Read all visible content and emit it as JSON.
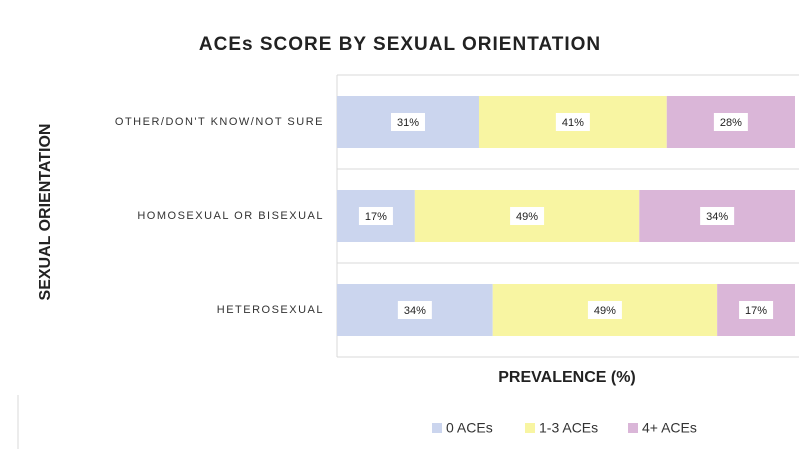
{
  "chart_data": {
    "type": "stacked-bar",
    "title": "ACEs SCORE BY SEXUAL ORIENTATION",
    "y_label": "SEXUAL ORIENTATION",
    "x_label": "PREVALENCE (%)",
    "categories": [
      "OTHER/DON'T KNOW/NOT SURE",
      "HOMOSEXUAL OR BISEXUAL",
      "HETEROSEXUAL"
    ],
    "series": [
      {
        "name": "0 ACEs",
        "color": "#cbd5ee",
        "values": [
          31,
          17,
          34
        ],
        "value_labels": [
          "31%",
          "17%",
          "34%"
        ]
      },
      {
        "name": "1-3 ACEs",
        "color": "#f8f5a2",
        "values": [
          41,
          49,
          49
        ],
        "value_labels": [
          "41%",
          "49%",
          "49%"
        ]
      },
      {
        "name": "4+ ACEs",
        "color": "#dab6d8",
        "values": [
          28,
          34,
          17
        ],
        "value_labels": [
          "28%",
          "34%",
          "17%"
        ]
      }
    ],
    "xlim": [
      0,
      100
    ],
    "legend": "bottom"
  }
}
